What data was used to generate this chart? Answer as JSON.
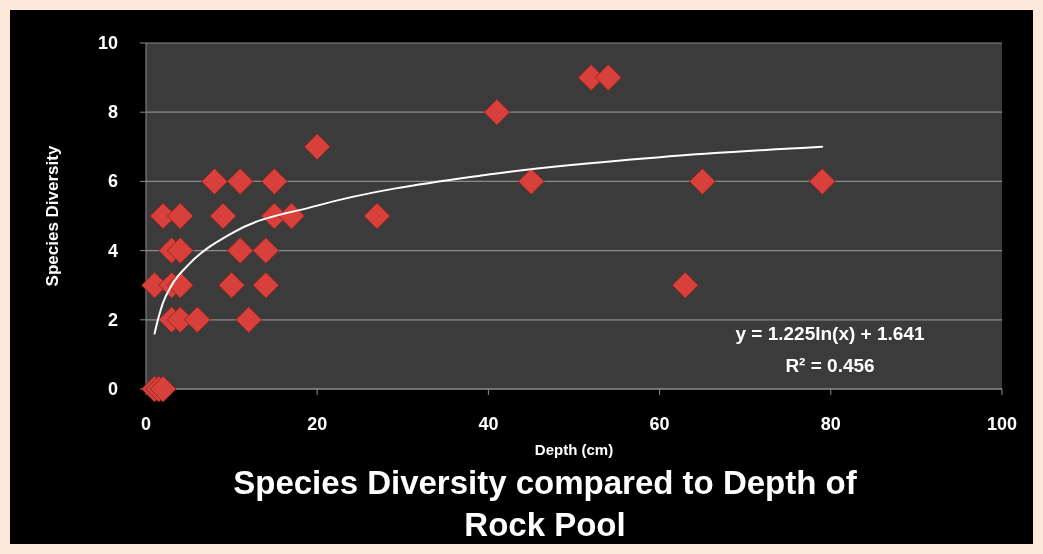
{
  "chart_data": {
    "type": "scatter",
    "title": "Species Diversity compared to Depth of Rock Pool",
    "xlabel": "Depth (cm)",
    "ylabel": "Species Diversity",
    "xlim": [
      0,
      100
    ],
    "xticks": [
      0,
      20,
      40,
      60,
      80,
      100
    ],
    "ylim": [
      0,
      10
    ],
    "yticks": [
      0,
      2,
      4,
      6,
      8,
      10
    ],
    "grid": "y",
    "marker": "diamond",
    "annotations": [
      "y = 1.225ln(x) + 1.641",
      "R² = 0.456"
    ],
    "series": [
      {
        "color": "#d8413b",
        "x": [
          1,
          1.5,
          2,
          1,
          2,
          3,
          3,
          3,
          4,
          4,
          4,
          4,
          6,
          8,
          11,
          15,
          9,
          10,
          11,
          12,
          14,
          14,
          15,
          17,
          20,
          27,
          41,
          45,
          52,
          54,
          65,
          79,
          63
        ],
        "values": [
          0,
          0,
          0,
          3,
          5,
          4,
          3,
          2,
          2,
          4,
          5,
          3,
          2,
          6,
          6,
          6,
          5,
          3,
          4,
          2,
          4,
          3,
          5,
          5,
          7,
          5,
          8,
          6,
          9,
          9,
          6,
          6,
          3
        ]
      },
      {
        "type": "line",
        "marker": "none",
        "color": "#ffffff",
        "x": [
          1,
          1.5,
          2,
          3,
          5,
          10,
          20,
          40,
          60,
          79
        ],
        "values": [
          1.6,
          2.1,
          2.5,
          3,
          3.6,
          4.5,
          5.3,
          6.2,
          6.7,
          7
        ]
      }
    ]
  }
}
